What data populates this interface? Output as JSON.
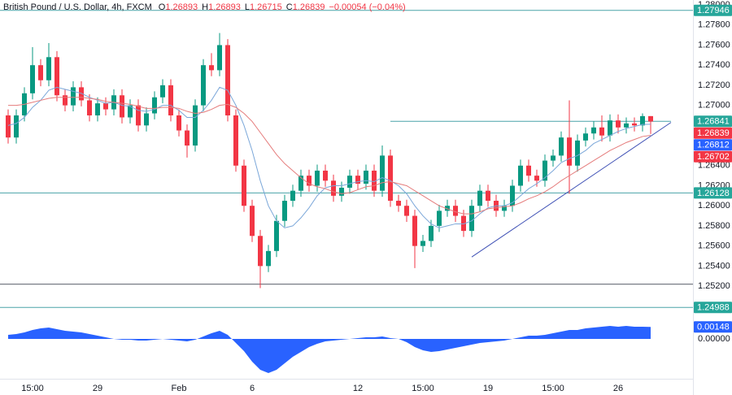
{
  "chart_data": {
    "type": "candlestick",
    "legend": {
      "title": "British Pound / U.S. Dollar, 4h, FXCM",
      "fields": [
        {
          "label": "O",
          "value": 1.26893
        },
        {
          "label": "H",
          "value": 1.26893
        },
        {
          "label": "L",
          "value": 1.26715
        },
        {
          "label": "C",
          "value": 1.26839
        }
      ],
      "change": {
        "value": -0.00054,
        "label": "−0.00054 (−0.04%)"
      }
    },
    "categories": [
      null,
      null,
      null,
      "15:00",
      null,
      null,
      null,
      null,
      null,
      null,
      null,
      "29",
      null,
      null,
      null,
      null,
      null,
      null,
      null,
      null,
      null,
      "Feb",
      null,
      null,
      null,
      null,
      null,
      null,
      null,
      null,
      "6",
      null,
      null,
      null,
      null,
      null,
      null,
      null,
      null,
      null,
      null,
      null,
      null,
      "12",
      null,
      null,
      null,
      null,
      null,
      null,
      null,
      "15:00",
      null,
      null,
      null,
      null,
      null,
      null,
      null,
      "19",
      null,
      null,
      null,
      null,
      null,
      null,
      null,
      "15:00",
      null,
      null,
      null,
      null,
      null,
      null,
      null,
      "26",
      null,
      null,
      null,
      null
    ],
    "open": [
      1.269,
      1.2668,
      1.269,
      1.2712,
      1.274,
      1.2725,
      1.2748,
      1.271,
      1.27,
      1.2718,
      1.2705,
      1.269,
      1.2702,
      1.2696,
      1.271,
      1.2688,
      1.27,
      1.268,
      1.2692,
      1.2708,
      1.272,
      1.269,
      1.2675,
      1.266,
      1.27,
      1.274,
      1.2735,
      1.276,
      1.269,
      1.264,
      1.26,
      1.257,
      1.254,
      1.2555,
      1.2585,
      1.2605,
      1.2615,
      1.263,
      1.262,
      1.2635,
      1.2625,
      1.261,
      1.2618,
      1.263,
      1.2622,
      1.2635,
      1.2615,
      1.265,
      1.2605,
      1.26,
      1.259,
      1.256,
      1.2565,
      1.258,
      1.2595,
      1.26,
      1.259,
      1.2575,
      1.26,
      1.2615,
      1.2605,
      1.2595,
      1.26,
      1.262,
      1.264,
      1.263,
      1.2625,
      1.2645,
      1.265,
      1.2668,
      1.264,
      1.2665,
      1.2672,
      1.2678,
      1.267,
      1.2685,
      1.2678,
      1.2682,
      1.268,
      1.26893
    ],
    "high": [
      1.2696,
      1.2696,
      1.2718,
      1.2758,
      1.2746,
      1.2762,
      1.2754,
      1.2716,
      1.2724,
      1.2724,
      1.2711,
      1.2708,
      1.2708,
      1.2716,
      1.2716,
      1.2706,
      1.2706,
      1.2698,
      1.2714,
      1.2726,
      1.2726,
      1.2696,
      1.2681,
      1.2706,
      1.2746,
      1.2752,
      1.2772,
      1.2766,
      1.2696,
      1.2646,
      1.2606,
      1.2576,
      1.2561,
      1.2591,
      1.2611,
      1.2621,
      1.2636,
      1.2636,
      1.2641,
      1.2641,
      1.2631,
      1.2624,
      1.2636,
      1.2636,
      1.2641,
      1.2641,
      1.266,
      1.2656,
      1.2611,
      1.2606,
      1.2596,
      1.2571,
      1.2586,
      1.2601,
      1.2606,
      1.2606,
      1.2596,
      1.2606,
      1.2621,
      1.2621,
      1.2611,
      1.2606,
      1.2626,
      1.2646,
      1.2646,
      1.2636,
      1.2651,
      1.2656,
      1.2674,
      1.2705,
      1.2671,
      1.2678,
      1.2684,
      1.269,
      1.2691,
      1.2691,
      1.2688,
      1.2688,
      1.2692,
      1.26893
    ],
    "low": [
      1.2662,
      1.2662,
      1.2684,
      1.2706,
      1.2719,
      1.2719,
      1.2704,
      1.2694,
      1.2694,
      1.2699,
      1.2684,
      1.2684,
      1.269,
      1.269,
      1.2682,
      1.2682,
      1.2674,
      1.2674,
      1.2686,
      1.2702,
      1.2684,
      1.2669,
      1.2648,
      1.2654,
      1.2694,
      1.2729,
      1.2729,
      1.2684,
      1.2634,
      1.2594,
      1.2564,
      1.2518,
      1.2534,
      1.2549,
      1.2579,
      1.2599,
      1.2609,
      1.2614,
      1.2614,
      1.2619,
      1.2604,
      1.2604,
      1.2612,
      1.2616,
      1.2616,
      1.2609,
      1.2609,
      1.2599,
      1.2594,
      1.2584,
      1.2538,
      1.2554,
      1.2559,
      1.2574,
      1.2589,
      1.2584,
      1.2569,
      1.2569,
      1.2594,
      1.2599,
      1.2589,
      1.2589,
      1.2594,
      1.2614,
      1.2624,
      1.2619,
      1.2619,
      1.2639,
      1.2644,
      1.2612,
      1.2634,
      1.2659,
      1.2666,
      1.2664,
      1.2664,
      1.2672,
      1.2672,
      1.2674,
      1.2674,
      1.26715
    ],
    "close": [
      1.2668,
      1.269,
      1.2712,
      1.274,
      1.2725,
      1.2748,
      1.271,
      1.27,
      1.2718,
      1.2705,
      1.269,
      1.2702,
      1.2696,
      1.271,
      1.2688,
      1.27,
      1.268,
      1.2692,
      1.2708,
      1.272,
      1.269,
      1.2675,
      1.266,
      1.27,
      1.274,
      1.2735,
      1.276,
      1.269,
      1.264,
      1.26,
      1.257,
      1.254,
      1.2555,
      1.2585,
      1.2605,
      1.2615,
      1.263,
      1.262,
      1.2635,
      1.2625,
      1.261,
      1.2618,
      1.263,
      1.2622,
      1.2635,
      1.2615,
      1.265,
      1.2605,
      1.26,
      1.259,
      1.256,
      1.2565,
      1.258,
      1.2595,
      1.26,
      1.259,
      1.2575,
      1.26,
      1.2615,
      1.2605,
      1.2595,
      1.26,
      1.262,
      1.264,
      1.263,
      1.2625,
      1.2645,
      1.265,
      1.2668,
      1.264,
      1.2665,
      1.2672,
      1.2678,
      1.267,
      1.2685,
      1.2678,
      1.2682,
      1.268,
      1.26893,
      1.26839
    ],
    "colors": {
      "up": "#089981",
      "down": "#f23645"
    },
    "lines": [
      {
        "color": "#7ba7d9",
        "values": [
          1.268,
          1.2682,
          1.2688,
          1.2698,
          1.2705,
          1.2715,
          1.2718,
          1.2716,
          1.2714,
          1.2712,
          1.2708,
          1.2705,
          1.2702,
          1.2703,
          1.27,
          1.2699,
          1.2695,
          1.2694,
          1.2696,
          1.27,
          1.27,
          1.2695,
          1.2688,
          1.2688,
          1.2695,
          1.2705,
          1.2718,
          1.2715,
          1.27,
          1.268,
          1.2655,
          1.2625,
          1.26,
          1.2585,
          1.2578,
          1.258,
          1.2588,
          1.2598,
          1.261,
          1.2618,
          1.262,
          1.262,
          1.2622,
          1.2624,
          1.2625,
          1.2624,
          1.2628,
          1.2625,
          1.262,
          1.2612,
          1.26,
          1.259,
          1.2582,
          1.2578,
          1.258,
          1.2582,
          1.2582,
          1.2585,
          1.2592,
          1.2598,
          1.26,
          1.26,
          1.2603,
          1.261,
          1.2617,
          1.2622,
          1.2628,
          1.2635,
          1.2643,
          1.2647,
          1.265,
          1.2655,
          1.2662,
          1.2666,
          1.267,
          1.2674,
          1.2677,
          1.2679,
          1.2681,
          1.26812
        ]
      },
      {
        "color": "#e57c7c",
        "values": [
          1.27,
          1.27,
          1.2701,
          1.2703,
          1.2705,
          1.2707,
          1.2708,
          1.2708,
          1.2708,
          1.2708,
          1.2707,
          1.2706,
          1.2704,
          1.2703,
          1.2702,
          1.2701,
          1.2699,
          1.2697,
          1.2697,
          1.2698,
          1.2698,
          1.2697,
          1.2694,
          1.2692,
          1.2693,
          1.2696,
          1.27,
          1.2701,
          1.2698,
          1.2692,
          1.2684,
          1.2673,
          1.2662,
          1.2651,
          1.2642,
          1.2635,
          1.2628,
          1.2622,
          1.2619,
          1.2617,
          1.2614,
          1.2612,
          1.2613,
          1.2616,
          1.2619,
          1.262,
          1.2623,
          1.2624,
          1.2622,
          1.262,
          1.2615,
          1.261,
          1.2605,
          1.26,
          1.2597,
          1.2594,
          1.2592,
          1.2592,
          1.2594,
          1.2597,
          1.2598,
          1.2599,
          1.26,
          1.2603,
          1.2607,
          1.261,
          1.2614,
          1.2619,
          1.2625,
          1.263,
          1.2635,
          1.264,
          1.2645,
          1.265,
          1.2655,
          1.2659,
          1.2663,
          1.2666,
          1.2669,
          1.26702
        ]
      }
    ],
    "levels": [
      {
        "value": 1.27946,
        "color": "#4aa3a8"
      },
      {
        "value": 1.26128,
        "color": "#4aa3a8"
      },
      {
        "value": 1.2522,
        "color": "#5d606b"
      },
      {
        "value": 1.24988,
        "color": "#4aa3a8"
      }
    ],
    "resistance": {
      "color": "#4aa3a8",
      "x": [
        47,
        81.5
      ],
      "y": [
        1.26841,
        1.26841
      ]
    },
    "trendline": {
      "color": "#3f51b5",
      "x": [
        57,
        81.5
      ],
      "y": [
        1.2549,
        1.2683
      ]
    },
    "price_tags": [
      {
        "value": 1.27946,
        "color": "#26a69a"
      },
      {
        "value": 1.26841,
        "color": "#26a69a"
      },
      {
        "value": 1.26839,
        "color": "#f23645"
      },
      {
        "value": 1.26812,
        "color": "#2962ff"
      },
      {
        "value": 1.26702,
        "color": "#f23645"
      },
      {
        "value": 1.26128,
        "color": "#26a69a"
      },
      {
        "value": 1.24988,
        "color": "#26a69a"
      }
    ],
    "xlim": [
      -1,
      84.2
    ],
    "ylim": [
      1.24893,
      1.28049
    ],
    "yticks": [
      {
        "value": 1.28,
        "label": "1.28000"
      },
      {
        "value": 1.278,
        "label": "1.27800"
      },
      {
        "value": 1.276,
        "label": "1.27600"
      },
      {
        "value": 1.274,
        "label": "1.27400"
      },
      {
        "value": 1.272,
        "label": "1.27200"
      },
      {
        "value": 1.27,
        "label": "1.27000"
      },
      {
        "value": 1.264,
        "label": "1.26400"
      },
      {
        "value": 1.262,
        "label": "1.26200"
      },
      {
        "value": 1.26,
        "label": "1.26000"
      },
      {
        "value": 1.258,
        "label": "1.25800"
      },
      {
        "value": 1.256,
        "label": "1.25600"
      },
      {
        "value": 1.254,
        "label": "1.25400"
      },
      {
        "value": 1.252,
        "label": "1.25200"
      }
    ],
    "oscillator": {
      "color": "#2962ff",
      "values": [
        0.0005,
        0.0006,
        0.0008,
        0.0011,
        0.0013,
        0.0014,
        0.0012,
        0.001,
        0.0009,
        0.0008,
        0.0006,
        0.0004,
        0.0002,
        0.0,
        -0.0001,
        -0.0001,
        -0.0002,
        -0.0002,
        -0.0001,
        0.0,
        -0.0001,
        -0.0002,
        -0.0003,
        -0.0001,
        0.0003,
        0.0007,
        0.001,
        0.0005,
        -0.0005,
        -0.0015,
        -0.0028,
        -0.0038,
        -0.0042,
        -0.0038,
        -0.003,
        -0.0022,
        -0.0016,
        -0.001,
        -0.0006,
        -0.0003,
        -0.0002,
        -0.0001,
        0.0,
        0.0001,
        0.0002,
        0.0002,
        0.0003,
        0.0001,
        0.0,
        -0.0004,
        -0.001,
        -0.0014,
        -0.0016,
        -0.0015,
        -0.0013,
        -0.0011,
        -0.0009,
        -0.0007,
        -0.0005,
        -0.0004,
        -0.0003,
        -0.0002,
        0.0,
        0.0002,
        0.0004,
        0.0004,
        0.0005,
        0.0007,
        0.0009,
        0.0011,
        0.0011,
        0.0013,
        0.0014,
        0.0015,
        0.0016,
        0.0015,
        0.0016,
        0.0015,
        0.0015,
        0.00148
      ],
      "tag": 0.00148
    },
    "y2lim": [
      -0.0053,
      0.0025
    ],
    "y2ticks": [
      {
        "value": 0,
        "label": "0.00000"
      }
    ]
  }
}
